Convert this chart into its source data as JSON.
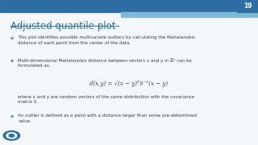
{
  "title": "Adjusted quantile plot",
  "slide_number": "19",
  "bg_color": "#f5f8fa",
  "top_bar_dark": "#2e6da4",
  "top_bar_light": "#7fb8d4",
  "slide_num_bg": "#2e6da4",
  "title_color": "#2e6da4",
  "text_color": "#3a3a3a",
  "bullet_color": "#5a9abf",
  "formula_color": "#3a3a3a",
  "logo_color": "#2e6da4",
  "bullet1": "This plot identifies possible multivariate outliers by calculating the Mahalanobis\ndistance of each point from the center of the data.",
  "bullet2_line1": "Multi-dimensional Mahalanobis distance between vectors x and y in ℝⁿ can be",
  "bullet2_line2": "formulated as:",
  "formula": "d(x,y) = √(x − y)ᵀS⁻¹(x − y)",
  "sub_text": "where x and y are random vectors of the same distribution with the covariance\nmatrix S.",
  "bullet3": "An outlier is defined as a point with a distance larger than some pre-determined\nvalue."
}
